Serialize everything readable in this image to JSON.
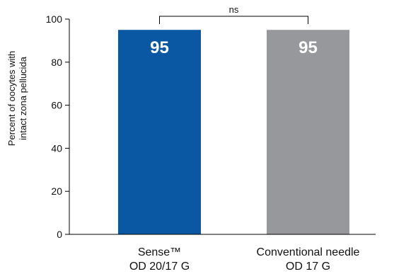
{
  "chart_data": {
    "type": "bar",
    "categories": [
      [
        "Sense™",
        "OD 20/17 G"
      ],
      [
        "Conventional needle",
        "OD 17 G"
      ]
    ],
    "values": [
      95,
      95
    ],
    "data_labels": [
      "95",
      "95"
    ],
    "bar_colors": [
      "#0a57a4",
      "#97989b"
    ],
    "ylabel_lines": [
      "Percent of oocytes with",
      "intact zona pellucida"
    ],
    "yticks": [
      "0",
      "20",
      "40",
      "60",
      "80",
      "100"
    ],
    "ylim": [
      0,
      100
    ],
    "annotation": "ns",
    "grid": false,
    "legend": "none"
  }
}
